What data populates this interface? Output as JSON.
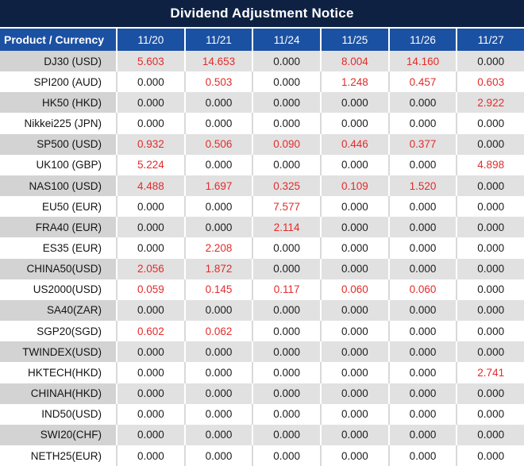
{
  "title": "Dividend Adjustment Notice",
  "table": {
    "product_header": "Product / Currency",
    "date_headers": [
      "11/20",
      "11/21",
      "11/24",
      "11/25",
      "11/26",
      "11/27"
    ],
    "rows": [
      {
        "product": "DJ30 (USD)",
        "values": [
          "5.603",
          "14.653",
          "0.000",
          "8.004",
          "14.160",
          "0.000"
        ]
      },
      {
        "product": "SPI200 (AUD)",
        "values": [
          "0.000",
          "0.503",
          "0.000",
          "1.248",
          "0.457",
          "0.603"
        ]
      },
      {
        "product": "HK50 (HKD)",
        "values": [
          "0.000",
          "0.000",
          "0.000",
          "0.000",
          "0.000",
          "2.922"
        ]
      },
      {
        "product": "Nikkei225 (JPN)",
        "values": [
          "0.000",
          "0.000",
          "0.000",
          "0.000",
          "0.000",
          "0.000"
        ]
      },
      {
        "product": "SP500 (USD)",
        "values": [
          "0.932",
          "0.506",
          "0.090",
          "0.446",
          "0.377",
          "0.000"
        ]
      },
      {
        "product": "UK100 (GBP)",
        "values": [
          "5.224",
          "0.000",
          "0.000",
          "0.000",
          "0.000",
          "4.898"
        ]
      },
      {
        "product": "NAS100 (USD)",
        "values": [
          "4.488",
          "1.697",
          "0.325",
          "0.109",
          "1.520",
          "0.000"
        ]
      },
      {
        "product": "EU50 (EUR)",
        "values": [
          "0.000",
          "0.000",
          "7.577",
          "0.000",
          "0.000",
          "0.000"
        ]
      },
      {
        "product": "FRA40 (EUR)",
        "values": [
          "0.000",
          "0.000",
          "2.114",
          "0.000",
          "0.000",
          "0.000"
        ]
      },
      {
        "product": "ES35 (EUR)",
        "values": [
          "0.000",
          "2.208",
          "0.000",
          "0.000",
          "0.000",
          "0.000"
        ]
      },
      {
        "product": "CHINA50(USD)",
        "values": [
          "2.056",
          "1.872",
          "0.000",
          "0.000",
          "0.000",
          "0.000"
        ]
      },
      {
        "product": "US2000(USD)",
        "values": [
          "0.059",
          "0.145",
          "0.117",
          "0.060",
          "0.060",
          "0.000"
        ]
      },
      {
        "product": "SA40(ZAR)",
        "values": [
          "0.000",
          "0.000",
          "0.000",
          "0.000",
          "0.000",
          "0.000"
        ]
      },
      {
        "product": "SGP20(SGD)",
        "values": [
          "0.602",
          "0.062",
          "0.000",
          "0.000",
          "0.000",
          "0.000"
        ]
      },
      {
        "product": "TWINDEX(USD)",
        "values": [
          "0.000",
          "0.000",
          "0.000",
          "0.000",
          "0.000",
          "0.000"
        ]
      },
      {
        "product": "HKTECH(HKD)",
        "values": [
          "0.000",
          "0.000",
          "0.000",
          "0.000",
          "0.000",
          "2.741"
        ]
      },
      {
        "product": "CHINAH(HKD)",
        "values": [
          "0.000",
          "0.000",
          "0.000",
          "0.000",
          "0.000",
          "0.000"
        ]
      },
      {
        "product": "IND50(USD)",
        "values": [
          "0.000",
          "0.000",
          "0.000",
          "0.000",
          "0.000",
          "0.000"
        ]
      },
      {
        "product": "SWI20(CHF)",
        "values": [
          "0.000",
          "0.000",
          "0.000",
          "0.000",
          "0.000",
          "0.000"
        ]
      },
      {
        "product": "NETH25(EUR)",
        "values": [
          "0.000",
          "0.000",
          "0.000",
          "0.000",
          "0.000",
          "0.000"
        ]
      }
    ]
  },
  "colors": {
    "title_bg": "#0e2142",
    "header_bg": "#1b51a2",
    "row_gray_product": "#d3d3d3",
    "row_gray_values": "#e2e1e1",
    "row_white": "#ffffff",
    "value_zero_text": "#1d1d1d",
    "value_nonzero_text": "#e32b2b"
  }
}
